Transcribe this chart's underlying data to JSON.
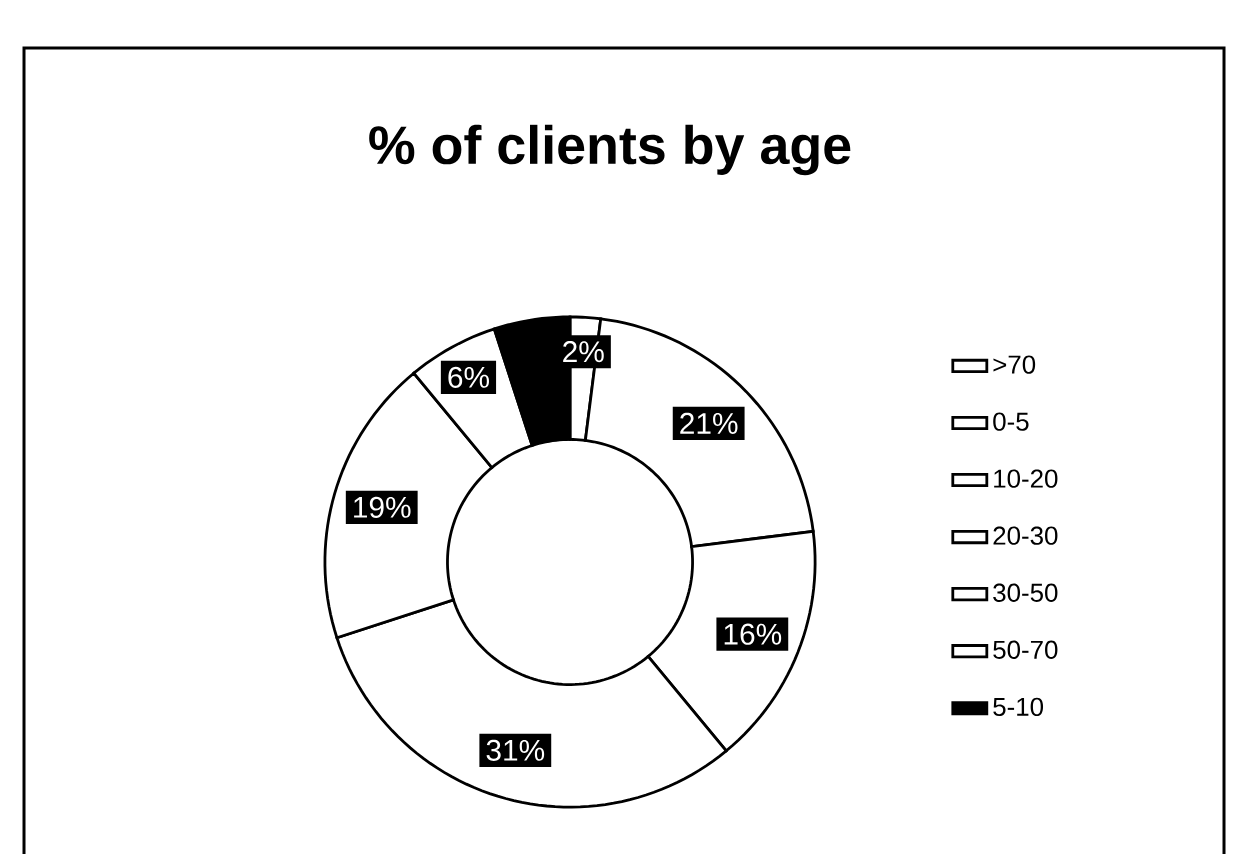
{
  "chart_data": {
    "type": "donut",
    "title": "% of clients by age",
    "categories": [
      ">70",
      "0-5",
      "10-20",
      "20-30",
      "30-50",
      "50-70",
      "5-10"
    ],
    "values": [
      2,
      21,
      16,
      31,
      19,
      6,
      5
    ],
    "value_labels": [
      "2%",
      "21%",
      "16%",
      "31%",
      "19%",
      "6%",
      null
    ],
    "colors": [
      "#ffffff",
      "#ffffff",
      "#ffffff",
      "#ffffff",
      "#ffffff",
      "#ffffff",
      "#000000"
    ],
    "legend": "right"
  }
}
